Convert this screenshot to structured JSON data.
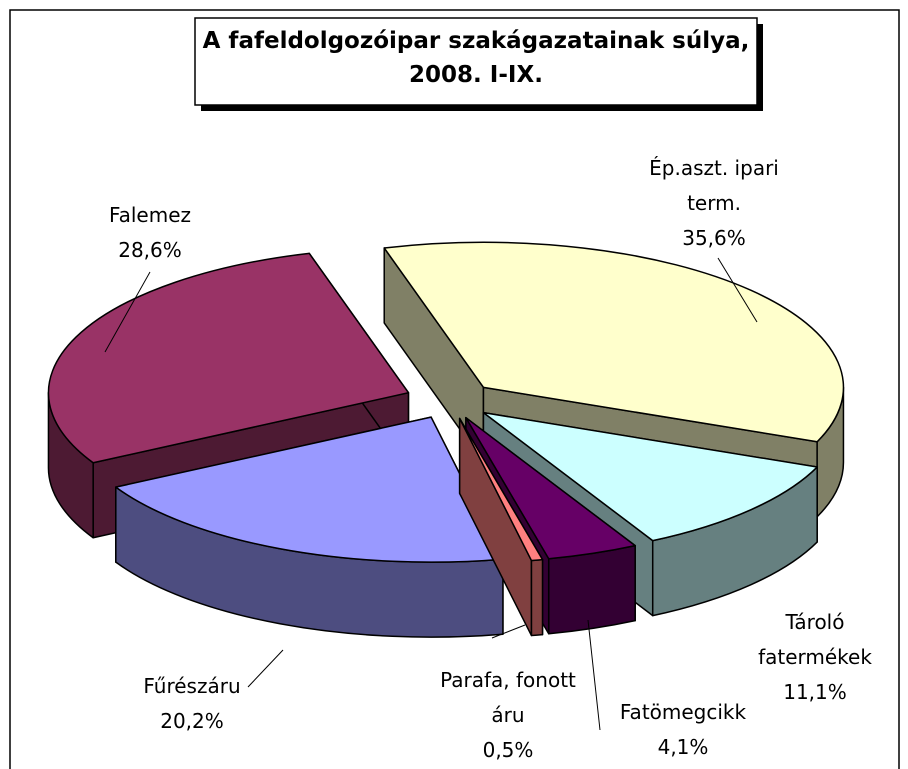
{
  "chart_data": {
    "type": "pie",
    "title": "A fafeldolgozóipar szakágazatainak súlya,\n2008. I-IX.",
    "categories": [
      "Ép.aszt. ipari\nterm.",
      "Tároló\nfatermékek",
      "Fatömegcikk",
      "Parafa, fonott\náru",
      "Fűrészáru",
      "Falemez"
    ],
    "values": [
      35.6,
      11.1,
      4.1,
      0.5,
      20.2,
      28.6
    ],
    "value_labels": [
      "35,6%",
      "11,1%",
      "4,1%",
      "0,5%",
      "20,2%",
      "28,6%"
    ],
    "colors": [
      "#FFFFCC",
      "#CCFFFF",
      "#660066",
      "#FF8080",
      "#9999FF",
      "#993366"
    ]
  }
}
